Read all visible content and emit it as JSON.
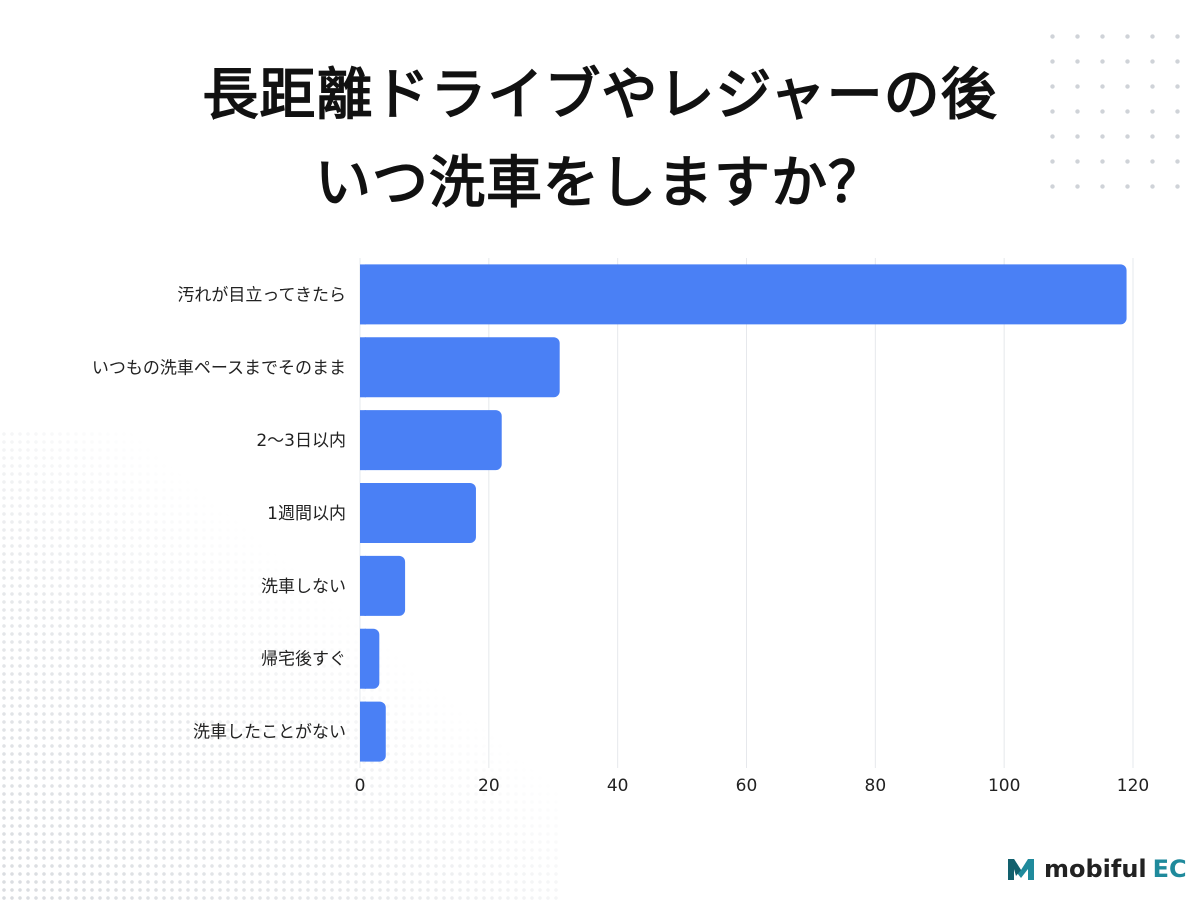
{
  "colors": {
    "bar": "#4a80f5",
    "grid": "#e6e8ec",
    "text": "#222222",
    "title": "#111111",
    "logo_accent": "#1f8a9c"
  },
  "logo": {
    "mark_icon": "mobiful-m-logo-icon",
    "name": "mobiful",
    "suffix": "EC"
  },
  "chart_data": {
    "type": "bar",
    "orientation": "horizontal",
    "title_lines": [
      "長距離ドライブやレジャーの後",
      "いつ洗車をしますか？"
    ],
    "categories": [
      "汚れが目立ってきたら",
      "いつもの洗車ペースまでそのまま",
      "2～3日以内",
      "1週間以内",
      "洗車しない",
      "帰宅後すぐ",
      "洗車したことがない"
    ],
    "values": [
      119,
      31,
      22,
      18,
      7,
      3,
      4
    ],
    "xlim": [
      0,
      120
    ],
    "xticks": [
      0,
      20,
      40,
      60,
      80,
      100,
      120
    ],
    "grid": "vertical",
    "xlabel": "",
    "ylabel": ""
  }
}
